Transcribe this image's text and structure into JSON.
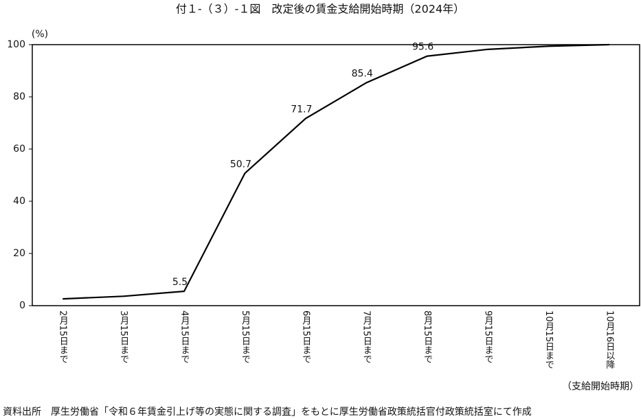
{
  "chart_data": {
    "type": "line",
    "title": "付１-（３）-１図　改定後の賃金支給開始時期（2024年）",
    "y_unit": "(%)",
    "x_label": "（支給開始時期）",
    "source": "資料出所　厚生労働省「令和６年賃金引上げ等の実態に関する調査」をもとに厚生労働省政策統括官付政策統括室にて作成",
    "categories": [
      "2月15日まで",
      "3月15日まで",
      "4月15日まで",
      "5月15日まで",
      "6月15日まで",
      "7月15日まで",
      "8月15日まで",
      "9月15日まで",
      "10月15日まで",
      "10月16日以降"
    ],
    "values": [
      2.6,
      3.6,
      5.5,
      50.7,
      71.7,
      85.4,
      95.6,
      98.2,
      99.4,
      100
    ],
    "value_labels": [
      null,
      null,
      "5.5",
      "50.7",
      "71.7",
      "85.4",
      "95.6",
      null,
      null,
      null
    ],
    "color": "#000000",
    "ylim": [
      0,
      100
    ],
    "yticks": [
      0,
      20,
      40,
      60,
      80,
      100
    ],
    "grid": false
  }
}
